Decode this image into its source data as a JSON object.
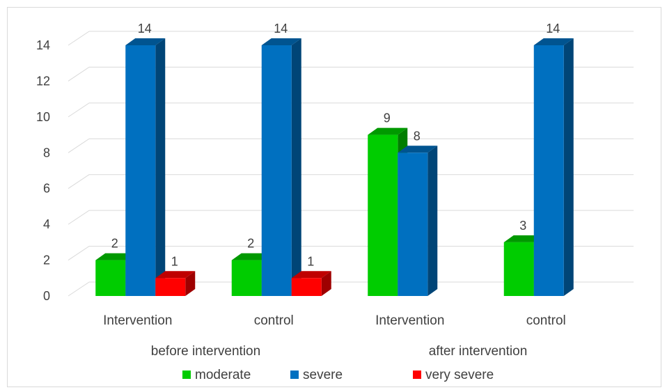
{
  "chart_data": {
    "type": "bar",
    "style": "3d-clustered-column",
    "groups": [
      {
        "label": "before intervention",
        "categories": [
          "Intervention",
          "control"
        ]
      },
      {
        "label": "after intervention",
        "categories": [
          "Intervention",
          "control"
        ]
      }
    ],
    "categories": [
      "Intervention",
      "control",
      "Intervention",
      "control"
    ],
    "series": [
      {
        "name": "moderate",
        "color": "#00cc00",
        "values": [
          2,
          2,
          9,
          3
        ]
      },
      {
        "name": "severe",
        "color": "#0070c0",
        "values": [
          14,
          14,
          8,
          14
        ]
      },
      {
        "name": "very severe",
        "color": "#ff0000",
        "values": [
          1,
          1,
          null,
          null
        ]
      }
    ],
    "ylim": [
      0,
      14
    ],
    "yticks": [
      0,
      2,
      4,
      6,
      8,
      10,
      12,
      14
    ],
    "grid": true,
    "legend": "bottom"
  }
}
